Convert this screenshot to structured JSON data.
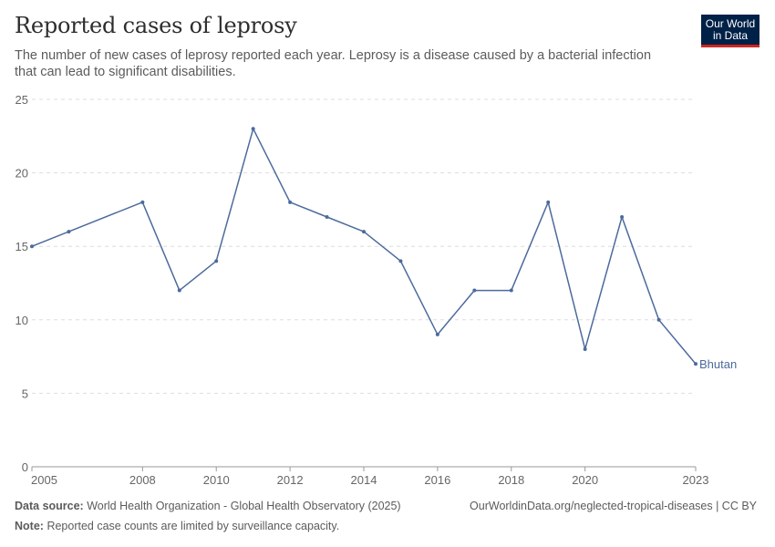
{
  "title": "Reported cases of leprosy",
  "subtitle": "The number of new cases of leprosy reported each year. Leprosy is a disease caused by a bacterial infection that can lead to significant disabilities.",
  "logo": {
    "line1": "Our World",
    "line2": "in Data"
  },
  "footer": {
    "source_label": "Data source:",
    "source_text": "World Health Organization - Global Health Observatory (2025)",
    "url": "OurWorldinData.org/neglected-tropical-diseases | CC BY",
    "note_label": "Note:",
    "note_text": "Reported case counts are limited by surveillance capacity."
  },
  "colors": {
    "line": "#4c6a9c",
    "grid": "#dddddd",
    "axis": "#999999",
    "tick_text": "#666666"
  },
  "chart_data": {
    "type": "line",
    "xlim": [
      2005,
      2023
    ],
    "ylim": [
      0,
      25
    ],
    "grid": true,
    "x_ticks": [
      2005,
      2008,
      2010,
      2012,
      2014,
      2016,
      2018,
      2020,
      2023
    ],
    "y_ticks": [
      0,
      5,
      10,
      15,
      20,
      25
    ],
    "series": [
      {
        "name": "Bhutan",
        "x": [
          2005,
          2006,
          2008,
          2009,
          2010,
          2011,
          2012,
          2013,
          2014,
          2015,
          2016,
          2017,
          2018,
          2019,
          2020,
          2021,
          2022,
          2023
        ],
        "y": [
          15,
          16,
          18,
          12,
          14,
          23,
          18,
          17,
          16,
          14,
          9,
          12,
          12,
          18,
          8,
          17,
          10,
          7
        ]
      }
    ]
  }
}
